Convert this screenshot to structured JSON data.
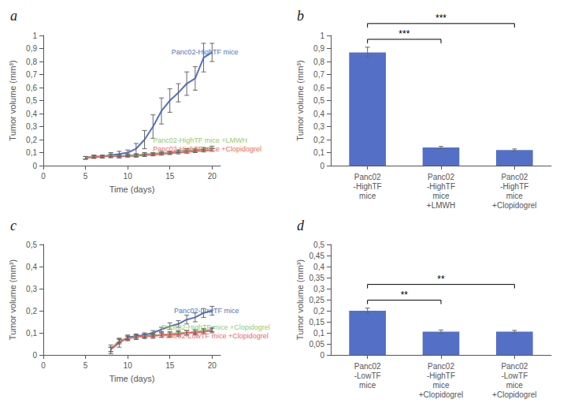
{
  "chart_data": [
    {
      "type": "line",
      "title": "a",
      "xlabel": "Time (days)",
      "ylabel": "Tumor volume (mm³)",
      "x": [
        5,
        6,
        7,
        8,
        9,
        10,
        11,
        12,
        13,
        14,
        15,
        16,
        17,
        18,
        19,
        20
      ],
      "xlim": [
        0,
        21
      ],
      "xticks": [
        0,
        5,
        10,
        15,
        20
      ],
      "ylim": [
        0,
        1
      ],
      "yticks": [
        0,
        {
          "value": 0.1,
          "label": "0,1"
        },
        {
          "value": 0.2,
          "label": "0,2"
        },
        {
          "value": 0.3,
          "label": "0,3"
        },
        {
          "value": 0.4,
          "label": "0,4"
        },
        {
          "value": 0.5,
          "label": "0,5"
        },
        {
          "value": 0.6,
          "label": "0,6"
        },
        {
          "value": 0.7,
          "label": "0,7"
        },
        {
          "value": 0.8,
          "label": "0,8"
        },
        {
          "value": 0.9,
          "label": "0,9"
        },
        1
      ],
      "grid": false,
      "series": [
        {
          "values": [
            0.06,
            0.07,
            0.07,
            0.08,
            0.09,
            0.1,
            0.13,
            0.2,
            0.3,
            0.42,
            0.5,
            0.56,
            0.63,
            0.67,
            0.83,
            0.87
          ],
          "errors": [
            0.01,
            0.01,
            0.01,
            0.02,
            0.02,
            0.02,
            0.04,
            0.07,
            0.09,
            0.1,
            0.09,
            0.07,
            0.09,
            0.09,
            0.11,
            0.07
          ]
        },
        {
          "values": [
            0.06,
            0.07,
            0.07,
            0.08,
            0.07,
            0.08,
            0.08,
            0.09,
            0.09,
            0.1,
            0.1,
            0.11,
            0.12,
            0.12,
            0.13,
            0.14
          ],
          "errors": [
            0.01,
            0.01,
            0.01,
            0.01,
            0.01,
            0.01,
            0.01,
            0.01,
            0.01,
            0.01,
            0.01,
            0.01,
            0.01,
            0.01,
            0.01,
            0.01
          ]
        },
        {
          "values": [
            0.06,
            0.065,
            0.07,
            0.075,
            0.07,
            0.075,
            0.075,
            0.08,
            0.085,
            0.09,
            0.095,
            0.1,
            0.105,
            0.11,
            0.115,
            0.12
          ],
          "errors": [
            0.01,
            0.01,
            0.01,
            0.01,
            0.01,
            0.01,
            0.01,
            0.01,
            0.01,
            0.01,
            0.01,
            0.01,
            0.01,
            0.01,
            0.01,
            0.01
          ]
        }
      ],
      "annotations": [
        {
          "text": "Panc02-HighTF mice",
          "x": 15.2,
          "y": 0.87
        },
        {
          "text": "Panc02-HighTF mice +LMWH",
          "x": 13.0,
          "y": 0.195
        },
        {
          "text": "Panc02-HighTF mice +Clopidogrel",
          "x": 13.0,
          "y": 0.145
        }
      ]
    },
    {
      "type": "bar",
      "title": "b",
      "ylabel": "Tumor volume (mm³)",
      "categories": [
        "Panc02\n-HighTF\nmice",
        "Panc02\n-HighTF\nmice\n+LMWH",
        "Panc02\n-HighTF\nmice\n+Clopidogrel"
      ],
      "values": [
        0.87,
        0.14,
        0.12
      ],
      "errors": [
        0.04,
        0.008,
        0.008
      ],
      "ylim": [
        0,
        1
      ],
      "yticks": [
        0,
        {
          "value": 0.1,
          "label": "0,1"
        },
        {
          "value": 0.2,
          "label": "0,2"
        },
        {
          "value": 0.3,
          "label": "0,3"
        },
        {
          "value": 0.4,
          "label": "0,4"
        },
        {
          "value": 0.5,
          "label": "0,5"
        },
        {
          "value": 0.6,
          "label": "0,6"
        },
        {
          "value": 0.7,
          "label": "0,7"
        },
        {
          "value": 0.8,
          "label": "0,8"
        },
        {
          "value": 0.9,
          "label": "0,9"
        },
        1
      ],
      "grid": false,
      "brackets": [
        {
          "from": "Panc02\n-HighTF\nmice",
          "to": "Panc02\n-HighTF\nmice\n+LMWH",
          "label": "***"
        },
        {
          "from": "Panc02\n-HighTF\nmice",
          "to": "Panc02\n-HighTF\nmice\n+Clopidogrel",
          "label": "***"
        }
      ]
    },
    {
      "type": "line",
      "title": "c",
      "xlabel": "Time (days)",
      "ylabel": "Tumor volume (mm³)",
      "x": [
        8,
        9,
        10,
        11,
        12,
        13,
        14,
        15,
        16,
        17,
        18,
        19,
        20
      ],
      "xlim": [
        0,
        21
      ],
      "xticks": [
        0,
        5,
        10,
        15,
        20
      ],
      "ylim": [
        0,
        0.5
      ],
      "yticks": [
        0,
        {
          "value": 0.1,
          "label": "0,1"
        },
        {
          "value": 0.2,
          "label": "0,2"
        },
        {
          "value": 0.3,
          "label": "0,3"
        },
        {
          "value": 0.4,
          "label": "0,4"
        },
        {
          "value": 0.5,
          "label": "0,5"
        }
      ],
      "grid": false,
      "series": [
        {
          "values": [
            0.025,
            0.055,
            0.08,
            0.085,
            0.09,
            0.1,
            0.115,
            0.13,
            0.14,
            0.16,
            0.17,
            0.19,
            0.2
          ],
          "errors": [
            0.02,
            0.02,
            0.01,
            0.01,
            0.01,
            0.01,
            0.01,
            0.015,
            0.015,
            0.02,
            0.02,
            0.02,
            0.02
          ]
        },
        {
          "values": [
            0.025,
            0.065,
            0.075,
            0.08,
            0.085,
            0.09,
            0.09,
            0.095,
            0.1,
            0.1,
            0.105,
            0.11,
            0.115
          ],
          "errors": [
            0.01,
            0.01,
            0.01,
            0.01,
            0.01,
            0.01,
            0.01,
            0.01,
            0.01,
            0.01,
            0.01,
            0.01,
            0.01
          ]
        },
        {
          "values": [
            0.025,
            0.06,
            0.075,
            0.08,
            0.085,
            0.085,
            0.09,
            0.09,
            0.095,
            0.1,
            0.1,
            0.105,
            0.11
          ],
          "errors": [
            0.01,
            0.01,
            0.01,
            0.01,
            0.01,
            0.01,
            0.01,
            0.01,
            0.01,
            0.01,
            0.01,
            0.01,
            0.01
          ]
        }
      ],
      "annotations": [
        {
          "text": "Panc02-LowTF mice",
          "x": 15.5,
          "y": 0.2
        },
        {
          "text": "Panc02-HighTF mice +Clopidogrel",
          "x": 14.0,
          "y": 0.125
        },
        {
          "text": "Panc02-LowTF mice +Clopidogrel",
          "x": 14.0,
          "y": 0.085
        }
      ]
    },
    {
      "type": "bar",
      "title": "d",
      "ylabel": "Tumor volume (mm³)",
      "categories": [
        "Panc02\n-LowTF\nmice",
        "Panc02\n-HighTF\nmice\n+Clopidogrel",
        "Panc02\n-LowTF\nmice\n+Clopidogrel"
      ],
      "values": [
        0.2,
        0.105,
        0.105
      ],
      "errors": [
        0.012,
        0.008,
        0.006
      ],
      "ylim": [
        0,
        0.5
      ],
      "yticks": [
        0,
        {
          "value": 0.05,
          "label": "0,05"
        },
        {
          "value": 0.1,
          "label": "0,1"
        },
        {
          "value": 0.15,
          "label": "0,15"
        },
        {
          "value": 0.2,
          "label": "0,2"
        },
        {
          "value": 0.25,
          "label": "0,25"
        },
        {
          "value": 0.3,
          "label": "0,3"
        },
        {
          "value": 0.35,
          "label": "0,35"
        },
        {
          "value": 0.4,
          "label": "0,4"
        },
        {
          "value": 0.45,
          "label": "0,45"
        },
        {
          "value": 0.5,
          "label": "0,5"
        }
      ],
      "grid": false,
      "brackets": [
        {
          "from": "Panc02\n-LowTF\nmice",
          "to": "Panc02\n-HighTF\nmice\n+Clopidogrel",
          "label": "**"
        },
        {
          "from": "Panc02\n-LowTF\nmice",
          "to": "Panc02\n-LowTF\nmice\n+Clopidogrel",
          "label": "**"
        }
      ]
    }
  ]
}
